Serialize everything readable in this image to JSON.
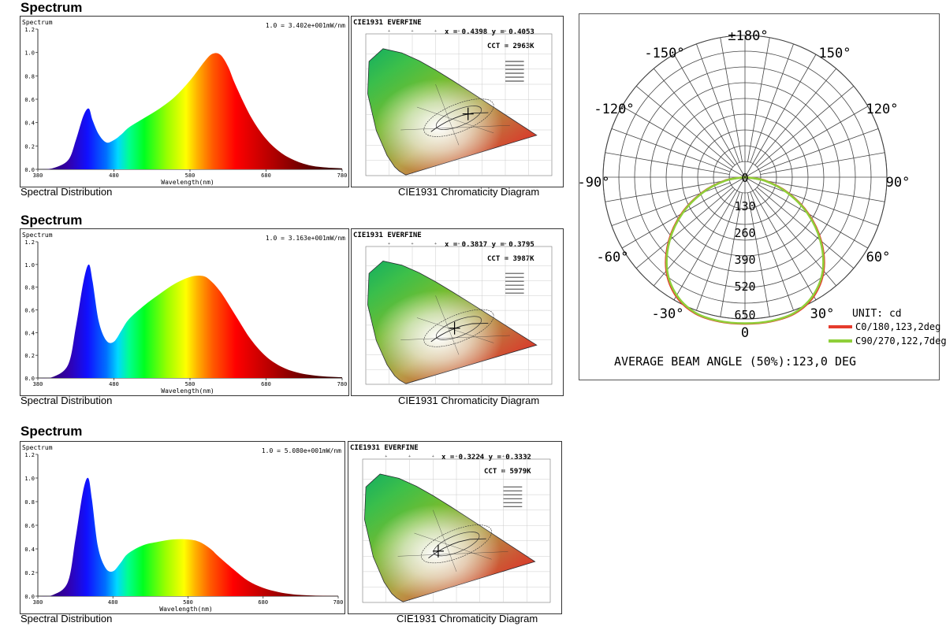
{
  "colors": {
    "c0": "#e53b2c",
    "c90": "#8fcf3a",
    "grid": "#444444"
  },
  "spectra": [
    {
      "section_title": "Spectrum",
      "chart_label": "Spectrum",
      "normalization": "1.0 = 3.402e+001mW/nm",
      "xlabel": "Wavelength(nm)",
      "caption_left": "Spectral Distribution",
      "caption_right": "CIE1931 Chromaticity Diagram",
      "cie_title": "CIE1931  EVERFINE",
      "xy_text": "x = 0.4398 y = 0.4053",
      "cct_text": "CCT = 2963K",
      "marker": [
        0.4398,
        0.4053
      ]
    },
    {
      "section_title": "Spectrum",
      "chart_label": "Spectrum",
      "normalization": "1.0 = 3.163e+001mW/nm",
      "xlabel": "Wavelength(nm)",
      "caption_left": "Spectral Distribution",
      "caption_right": "CIE1931 Chromaticity Diagram",
      "cie_title": "CIE1931  EVERFINE",
      "xy_text": "x = 0.3817 y = 0.3795",
      "cct_text": "CCT = 3987K",
      "marker": [
        0.3817,
        0.3795
      ]
    },
    {
      "section_title": "Spectrum",
      "chart_label": "Spectrum",
      "normalization": "1.0 = 5.080e+001mW/nm",
      "xlabel": "Wavelength(nm)",
      "caption_left": "Spectral Distribution",
      "caption_right": "CIE1931 Chromaticity Diagram",
      "cie_title": "CIE1931  EVERFINE",
      "xy_text": "x = 0.3224 y = 0.3332",
      "cct_text": "CCT = 5979K",
      "marker": [
        0.3224,
        0.3332
      ]
    }
  ],
  "polar": {
    "unit_label": "UNIT: cd",
    "legend": [
      "C0/180,123,2deg",
      "C90/270,122,7deg"
    ],
    "beam_angle_text": "AVERAGE BEAM ANGLE (50%):123,0 DEG",
    "angle_labels": [
      "±180°",
      "-150°",
      "150°",
      "-120°",
      "120°",
      "-90°",
      "90°",
      "-60°",
      "60°",
      "-30°",
      "30°",
      "0"
    ],
    "ring_labels": [
      "0",
      "130",
      "260",
      "390",
      "520",
      "650"
    ]
  },
  "chart_data": [
    {
      "type": "area",
      "title": "Spectrum",
      "xlabel": "Wavelength(nm)",
      "ylabel": "",
      "xlim": [
        380,
        780
      ],
      "ylim": [
        0,
        1.2
      ],
      "xticks": [
        380,
        480,
        580,
        680,
        780
      ],
      "yticks": [
        0.0,
        0.2,
        0.4,
        0.6,
        0.8,
        1.0,
        1.2
      ],
      "x": [
        380,
        400,
        420,
        430,
        440,
        447,
        452,
        460,
        470,
        480,
        490,
        500,
        520,
        540,
        560,
        580,
        600,
        610,
        620,
        630,
        640,
        660,
        680,
        700,
        720,
        740,
        760,
        780
      ],
      "y": [
        0,
        0.01,
        0.08,
        0.25,
        0.46,
        0.52,
        0.42,
        0.3,
        0.23,
        0.25,
        0.3,
        0.36,
        0.44,
        0.52,
        0.62,
        0.76,
        0.93,
        0.99,
        0.98,
        0.88,
        0.72,
        0.45,
        0.26,
        0.14,
        0.07,
        0.03,
        0.015,
        0.008
      ]
    },
    {
      "type": "area",
      "title": "Spectrum",
      "xlabel": "Wavelength(nm)",
      "ylabel": "",
      "xlim": [
        380,
        780
      ],
      "ylim": [
        0,
        1.2
      ],
      "xticks": [
        380,
        480,
        580,
        680,
        780
      ],
      "yticks": [
        0.0,
        0.2,
        0.4,
        0.6,
        0.8,
        1.0,
        1.2
      ],
      "x": [
        380,
        400,
        420,
        430,
        440,
        447,
        452,
        460,
        470,
        480,
        490,
        500,
        520,
        540,
        560,
        580,
        595,
        605,
        620,
        640,
        660,
        680,
        700,
        720,
        740,
        760,
        780
      ],
      "y": [
        0,
        0.01,
        0.12,
        0.45,
        0.85,
        1.0,
        0.85,
        0.5,
        0.33,
        0.32,
        0.42,
        0.52,
        0.64,
        0.74,
        0.83,
        0.89,
        0.9,
        0.87,
        0.76,
        0.55,
        0.34,
        0.19,
        0.1,
        0.05,
        0.025,
        0.012,
        0.006
      ]
    },
    {
      "type": "area",
      "title": "Spectrum",
      "xlabel": "Wavelength(nm)",
      "ylabel": "",
      "xlim": [
        380,
        780
      ],
      "ylim": [
        0,
        1.2
      ],
      "xticks": [
        380,
        480,
        580,
        680,
        780
      ],
      "yticks": [
        0.0,
        0.2,
        0.4,
        0.6,
        0.8,
        1.0,
        1.2
      ],
      "x": [
        380,
        400,
        420,
        430,
        440,
        447,
        452,
        460,
        470,
        480,
        490,
        500,
        520,
        540,
        560,
        580,
        595,
        610,
        620,
        640,
        660,
        680,
        700,
        720,
        740,
        760,
        780
      ],
      "y": [
        0,
        0.01,
        0.12,
        0.48,
        0.88,
        1.0,
        0.82,
        0.42,
        0.24,
        0.21,
        0.28,
        0.36,
        0.43,
        0.46,
        0.48,
        0.48,
        0.46,
        0.4,
        0.34,
        0.23,
        0.13,
        0.07,
        0.035,
        0.015,
        0.007,
        0.003,
        0.001
      ]
    },
    {
      "type": "polar",
      "title": "AVERAGE BEAM ANGLE (50%):123,0 DEG",
      "unit": "cd",
      "rlim": [
        0,
        650
      ],
      "rticks": [
        0,
        130,
        260,
        390,
        520,
        650
      ],
      "series": [
        {
          "name": "C0/180,123,2deg",
          "angles": [
            -90,
            -80,
            -70,
            -60,
            -50,
            -40,
            -30,
            -20,
            -10,
            0,
            10,
            20,
            30,
            40,
            50,
            60,
            70,
            80,
            90
          ],
          "values": [
            0,
            95,
            210,
            335,
            455,
            560,
            630,
            665,
            672,
            672,
            672,
            665,
            630,
            560,
            455,
            335,
            210,
            95,
            0
          ]
        },
        {
          "name": "C90/270,122,7deg",
          "angles": [
            -90,
            -80,
            -70,
            -60,
            -50,
            -40,
            -30,
            -20,
            -10,
            0,
            10,
            20,
            30,
            40,
            50,
            60,
            70,
            80,
            90
          ],
          "values": [
            0,
            90,
            205,
            330,
            450,
            555,
            625,
            662,
            670,
            670,
            670,
            662,
            625,
            555,
            450,
            330,
            205,
            90,
            0
          ]
        }
      ]
    }
  ]
}
